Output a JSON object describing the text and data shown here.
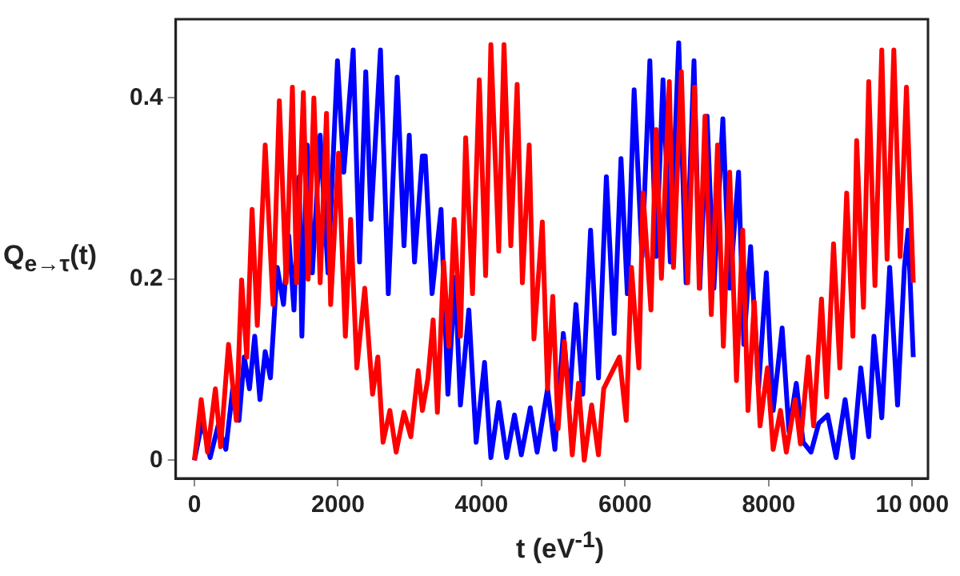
{
  "chart_data": {
    "type": "line",
    "xlabel": "t (eV$^{-1}$)",
    "ylabel": "Q$_{e→τ}$(t)",
    "xlim": [
      -260,
      10220
    ],
    "ylim": [
      -0.02,
      0.487
    ],
    "xticks": [
      0,
      2000,
      4000,
      6000,
      8000,
      {
        "value": 10000,
        "label": "10 000"
      }
    ],
    "yticks": [
      0,
      0.2,
      0.4
    ],
    "grid": false,
    "legend": false,
    "series": [
      {
        "color": "#0000ff",
        "x": [
          0,
          110,
          219,
          329,
          438,
          533,
          621,
          694,
          767,
          840,
          913,
          986,
          1059,
          1154,
          1241,
          1314,
          1387,
          1460,
          1497,
          1570,
          1643,
          1752,
          1861,
          1993,
          2081,
          2212,
          2300,
          2387,
          2460,
          2592,
          2701,
          2825,
          2920,
          2993,
          3066,
          3176,
          3216,
          3311,
          3436,
          3531,
          3633,
          3706,
          3823,
          3925,
          4042,
          4130,
          4240,
          4350,
          4459,
          4554,
          4679,
          4774,
          4920,
          5022,
          5139,
          5227,
          5315,
          5410,
          5519,
          5629,
          5739,
          5848,
          5943,
          6031,
          6126,
          6236,
          6345,
          6433,
          6528,
          6630,
          6747,
          6850,
          6960,
          7040,
          7142,
          7237,
          7362,
          7457,
          7581,
          7654,
          7749,
          7859,
          7968,
          8063,
          8188,
          8283,
          8385,
          8480,
          8590,
          8699,
          8823,
          8940,
          9065,
          9174,
          9284,
          9394,
          9467,
          9576,
          9686,
          9796,
          9891,
          9942,
          10015
        ],
        "values": [
          0,
          0.044,
          0.003,
          0.038,
          0.012,
          0.079,
          0.044,
          0.114,
          0.079,
          0.137,
          0.067,
          0.12,
          0.091,
          0.213,
          0.172,
          0.248,
          0.166,
          0.313,
          0.137,
          0.348,
          0.207,
          0.359,
          0.207,
          0.441,
          0.318,
          0.453,
          0.219,
          0.429,
          0.266,
          0.453,
          0.184,
          0.423,
          0.237,
          0.359,
          0.219,
          0.336,
          0.336,
          0.184,
          0.277,
          0.073,
          0.202,
          0.061,
          0.166,
          0.02,
          0.108,
          0.003,
          0.064,
          0.003,
          0.05,
          0.006,
          0.058,
          0.009,
          0.079,
          0.012,
          0.14,
          0.067,
          0.172,
          0.073,
          0.254,
          0.091,
          0.313,
          0.14,
          0.333,
          0.184,
          0.409,
          0.225,
          0.441,
          0.225,
          0.42,
          0.219,
          0.461,
          0.196,
          0.441,
          0.19,
          0.38,
          0.19,
          0.377,
          0.19,
          0.318,
          0.128,
          0.236,
          0.079,
          0.207,
          0.055,
          0.146,
          0.032,
          0.085,
          0.02,
          0.009,
          0.041,
          0.05,
          0.003,
          0.067,
          0.003,
          0.102,
          0.026,
          0.137,
          0.047,
          0.213,
          0.061,
          0.213,
          0.254,
          0.114
        ]
      },
      {
        "color": "#ff0000",
        "x": [
          0,
          95,
          182,
          292,
          365,
          475,
          584,
          657,
          730,
          803,
          876,
          986,
          1095,
          1183,
          1278,
          1365,
          1423,
          1518,
          1584,
          1664,
          1752,
          1840,
          1898,
          2008,
          2103,
          2176,
          2263,
          2373,
          2482,
          2555,
          2628,
          2723,
          2810,
          2920,
          3015,
          3117,
          3176,
          3253,
          3326,
          3385,
          3472,
          3545,
          3619,
          3706,
          3779,
          3874,
          3969,
          4057,
          4130,
          4240,
          4313,
          4408,
          4496,
          4569,
          4664,
          4730,
          4847,
          4920,
          4993,
          5066,
          5154,
          5264,
          5351,
          5431,
          5534,
          5629,
          5702,
          5921,
          6016,
          6089,
          6192,
          6250,
          6360,
          6433,
          6506,
          6616,
          6674,
          6784,
          6872,
          6967,
          7033,
          7113,
          7201,
          7288,
          7369,
          7457,
          7552,
          7639,
          7712,
          7800,
          7880,
          7983,
          8063,
          8165,
          8246,
          8370,
          8443,
          8553,
          8626,
          8736,
          8809,
          8904,
          8992,
          9087,
          9174,
          9226,
          9321,
          9394,
          9481,
          9576,
          9650,
          9744,
          9832,
          9920,
          10015
        ],
        "values": [
          0,
          0.067,
          0.009,
          0.079,
          0.015,
          0.128,
          0.044,
          0.199,
          0.114,
          0.277,
          0.149,
          0.348,
          0.172,
          0.397,
          0.196,
          0.412,
          0.196,
          0.406,
          0.2,
          0.4,
          0.196,
          0.383,
          0.172,
          0.339,
          0.137,
          0.266,
          0.102,
          0.19,
          0.073,
          0.114,
          0.02,
          0.055,
          0.009,
          0.053,
          0.026,
          0.099,
          0.055,
          0.09,
          0.155,
          0.053,
          0.219,
          0.126,
          0.266,
          0.137,
          0.356,
          0.184,
          0.42,
          0.204,
          0.459,
          0.231,
          0.459,
          0.237,
          0.415,
          0.196,
          0.348,
          0.134,
          0.263,
          0.079,
          0.181,
          0.035,
          0.131,
          0.006,
          0.085,
          0,
          0.061,
          0.006,
          0.079,
          0.114,
          0.044,
          0.213,
          0.102,
          0.295,
          0.166,
          0.365,
          0.201,
          0.418,
          0.213,
          0.429,
          0.196,
          0.412,
          0.19,
          0.38,
          0.161,
          0.348,
          0.126,
          0.318,
          0.088,
          0.254,
          0.055,
          0.175,
          0.038,
          0.102,
          0.012,
          0.055,
          0.009,
          0.067,
          0.018,
          0.114,
          0.038,
          0.178,
          0.07,
          0.239,
          0.102,
          0.295,
          0.137,
          0.353,
          0.169,
          0.418,
          0.193,
          0.453,
          0.222,
          0.453,
          0.225,
          0.412,
          0.196
        ]
      }
    ]
  }
}
